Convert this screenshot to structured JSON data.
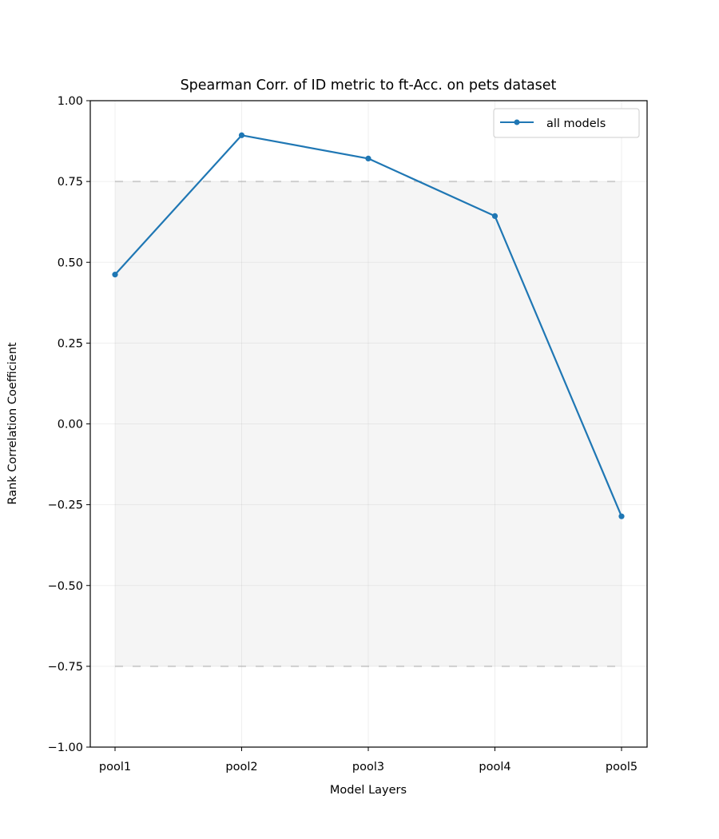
{
  "chart_data": {
    "type": "line",
    "title": "Spearman Corr. of ID metric to ft-Acc. on pets dataset",
    "xlabel": "Model Layers",
    "ylabel": "Rank Correlation Coefficient",
    "categories": [
      "pool1",
      "pool2",
      "pool3",
      "pool4",
      "pool5"
    ],
    "series": [
      {
        "name": "all models",
        "values": [
          0.462,
          0.893,
          0.821,
          0.643,
          -0.286
        ],
        "color": "#1f77b4",
        "marker": "circle"
      }
    ],
    "ylim": [
      -1.0,
      1.0
    ],
    "yticks": [
      -1.0,
      -0.75,
      -0.5,
      -0.25,
      0.0,
      0.25,
      0.5,
      0.75,
      1.0
    ],
    "ytick_labels": [
      "−1.00",
      "−0.75",
      "−0.50",
      "−0.25",
      "0.00",
      "0.25",
      "0.50",
      "0.75",
      "1.00"
    ],
    "shaded_band": {
      "from": -0.75,
      "to": 0.75,
      "color": "#f5f5f5",
      "border_color": "#d3d3d3",
      "border_style": "dashed"
    },
    "grid": true,
    "legend_position": "top-right"
  }
}
